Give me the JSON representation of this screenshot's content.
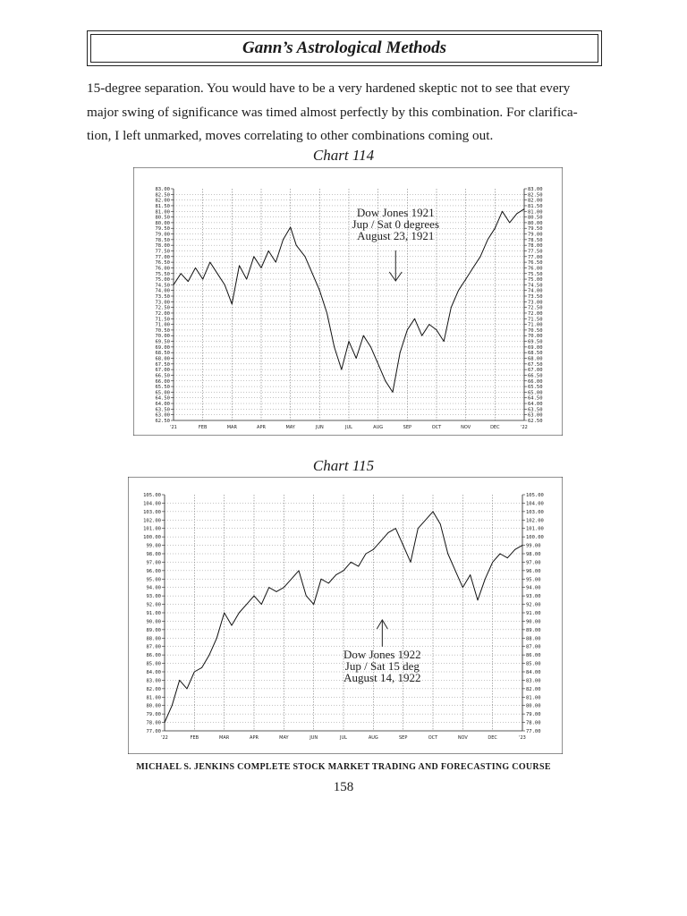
{
  "header": {
    "title": "Gann’s Astrological Methods"
  },
  "paragraph": [
    "15-degree separation. You would have to be a very hardened skeptic not to see that every",
    "major swing of significance was timed almost perfectly by this combination. For clarifica-",
    "tion, I left unmarked, moves correlating to other combinations coming out."
  ],
  "chart_data": [
    {
      "type": "line",
      "title": "Chart 114",
      "annotation": [
        "Dow Jones 1921",
        "Jup / Sat 0 degrees",
        "August 23, 1921"
      ],
      "annotation_x": 7.6,
      "arrow_direction": "down",
      "x_ticks": [
        "'21",
        "FEB",
        "MAR",
        "APR",
        "MAY",
        "JUN",
        "JUL",
        "AUG",
        "SEP",
        "OCT",
        "NOV",
        "DEC",
        "'22"
      ],
      "ylim": [
        62.5,
        83.0
      ],
      "y_step": 0.5,
      "y_tick_labels": [
        "83.00",
        "82.50",
        "82.00",
        "81.50",
        "81.00",
        "80.50",
        "80.00",
        "79.50",
        "79.00",
        "78.50",
        "78.00",
        "77.50",
        "77.00",
        "76.50",
        "76.00",
        "75.50",
        "75.00",
        "74.50",
        "74.00",
        "73.50",
        "73.00",
        "72.50",
        "72.00",
        "71.50",
        "71.00",
        "70.50",
        "70.00",
        "69.50",
        "69.00",
        "68.50",
        "68.00",
        "67.50",
        "67.00",
        "66.50",
        "66.00",
        "65.50",
        "65.00",
        "64.50",
        "64.00",
        "63.50",
        "63.00",
        "62.50"
      ],
      "series": [
        {
          "x": [
            0,
            0.25,
            0.5,
            0.75,
            1,
            1.25,
            1.5,
            1.75,
            2,
            2.25,
            2.5,
            2.75,
            3,
            3.25,
            3.5,
            3.75,
            4,
            4.2,
            4.5,
            4.75,
            5,
            5.25,
            5.5,
            5.75,
            6,
            6.25,
            6.5,
            6.75,
            7,
            7.25,
            7.5,
            7.75,
            8,
            8.25,
            8.5,
            8.75,
            9,
            9.25,
            9.5,
            9.75,
            10,
            10.25,
            10.5,
            10.75,
            11,
            11.25,
            11.5,
            11.75,
            12
          ],
          "y": [
            74.5,
            75.5,
            74.8,
            76.0,
            75.0,
            76.5,
            75.5,
            74.5,
            72.8,
            76.2,
            75.0,
            77.0,
            76.0,
            77.5,
            76.5,
            78.5,
            79.6,
            78.0,
            77.0,
            75.5,
            74.0,
            72.0,
            69.0,
            67.0,
            69.5,
            68.0,
            70.0,
            69.0,
            67.5,
            66.0,
            65.0,
            68.5,
            70.5,
            71.5,
            70.0,
            71.0,
            70.5,
            69.5,
            72.5,
            74.0,
            75.0,
            76.0,
            77.0,
            78.5,
            79.5,
            81.0,
            80.0,
            80.8,
            81.2
          ]
        }
      ]
    },
    {
      "type": "line",
      "title": "Chart 115",
      "annotation": [
        "Dow Jones 1922",
        "Jup / Sat 15 deg",
        "August 14, 1922"
      ],
      "annotation_x": 7.3,
      "arrow_direction": "up",
      "x_ticks": [
        "'22",
        "FEB",
        "MAR",
        "APR",
        "MAY",
        "JUN",
        "JUL",
        "AUG",
        "SEP",
        "OCT",
        "NOV",
        "DEC",
        "'23"
      ],
      "ylim": [
        77.0,
        105.0
      ],
      "y_step": 1,
      "y_tick_labels": [
        "105.00",
        "104.00",
        "103.00",
        "102.00",
        "101.00",
        "100.00",
        "99.00",
        "98.00",
        "97.00",
        "96.00",
        "95.00",
        "94.00",
        "93.00",
        "92.00",
        "91.00",
        "90.00",
        "89.00",
        "88.00",
        "87.00",
        "86.00",
        "85.00",
        "84.00",
        "83.00",
        "82.00",
        "81.00",
        "80.00",
        "79.00",
        "78.00",
        "77.00"
      ],
      "series": [
        {
          "x": [
            0,
            0.25,
            0.5,
            0.75,
            1,
            1.25,
            1.5,
            1.75,
            2,
            2.25,
            2.5,
            2.75,
            3,
            3.25,
            3.5,
            3.75,
            4,
            4.25,
            4.5,
            4.75,
            5,
            5.25,
            5.5,
            5.75,
            6,
            6.25,
            6.5,
            6.75,
            7,
            7.25,
            7.5,
            7.75,
            8,
            8.25,
            8.5,
            8.75,
            9,
            9.25,
            9.5,
            9.75,
            10,
            10.25,
            10.5,
            10.75,
            11,
            11.25,
            11.5,
            11.75,
            12
          ],
          "y": [
            78.0,
            80.0,
            83.0,
            82.0,
            84.0,
            84.5,
            86.0,
            88.0,
            91.0,
            89.5,
            91.0,
            92.0,
            93.0,
            92.0,
            94.0,
            93.5,
            94.0,
            95.0,
            96.0,
            93.0,
            92.0,
            95.0,
            94.5,
            95.5,
            96.0,
            97.0,
            96.5,
            98.0,
            98.5,
            99.5,
            100.5,
            101.0,
            99.0,
            97.0,
            101.0,
            102.0,
            103.0,
            101.5,
            98.0,
            96.0,
            94.0,
            95.5,
            92.5,
            95.0,
            97.0,
            98.0,
            97.5,
            98.5,
            99.0
          ]
        }
      ]
    }
  ],
  "footer": {
    "text": "MICHAEL S. JENKINS COMPLETE STOCK MARKET TRADING AND FORECASTING COURSE"
  },
  "page_number": "158"
}
